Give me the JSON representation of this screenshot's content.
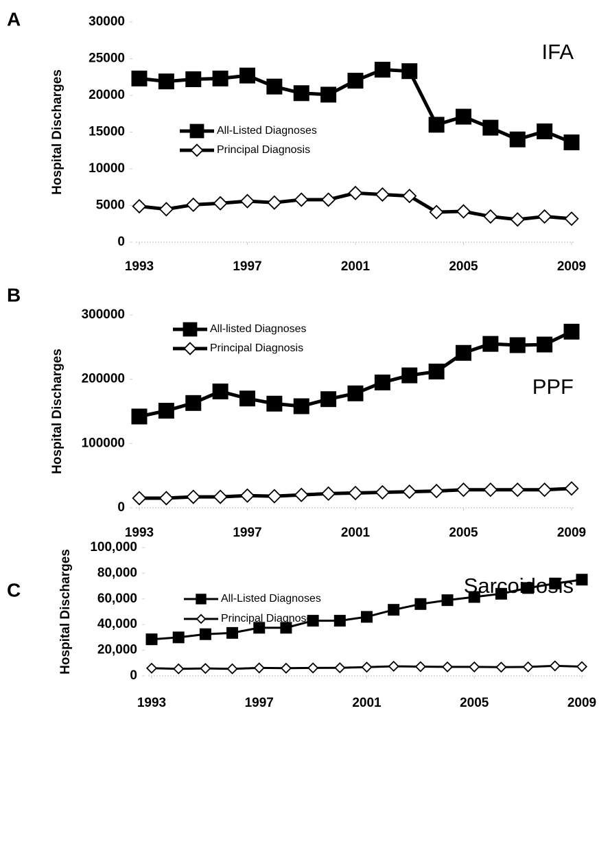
{
  "chart_data": [
    {
      "type": "line",
      "panel": "A",
      "annotation": "IFA",
      "ylabel": "Hospital Discharges",
      "x": [
        1993,
        1994,
        1995,
        1996,
        1997,
        1998,
        1999,
        2000,
        2001,
        2002,
        2003,
        2004,
        2005,
        2006,
        2007,
        2008,
        2009
      ],
      "xlim": [
        1993,
        2009
      ],
      "xticks": [
        1993,
        1997,
        2001,
        2005,
        2009
      ],
      "ylim": [
        0,
        30000
      ],
      "yticks": [
        0,
        5000,
        10000,
        15000,
        20000,
        25000,
        30000
      ],
      "series": [
        {
          "name": "All-Listed Diagnoses",
          "color": "#000000",
          "marker": "square",
          "values": [
            22300,
            21900,
            22200,
            22300,
            22700,
            21200,
            20300,
            20100,
            22000,
            23500,
            23300,
            16000,
            17100,
            15600,
            14000,
            15100,
            13600
          ]
        },
        {
          "name": "Principal Diagnosis",
          "color": "#000000",
          "marker": "diamond",
          "values": [
            4900,
            4500,
            5100,
            5300,
            5600,
            5400,
            5800,
            5800,
            6700,
            6500,
            6300,
            4100,
            4200,
            3500,
            3100,
            3500,
            3200
          ]
        }
      ]
    },
    {
      "type": "line",
      "panel": "B",
      "annotation": "PPF",
      "ylabel": "Hospital Discharges",
      "x": [
        1993,
        1994,
        1995,
        1996,
        1997,
        1998,
        1999,
        2000,
        2001,
        2002,
        2003,
        2004,
        2005,
        2006,
        2007,
        2008,
        2009
      ],
      "xlim": [
        1993,
        2009
      ],
      "xticks": [
        1993,
        1997,
        2001,
        2005,
        2009
      ],
      "ylim": [
        0,
        300000
      ],
      "yticks": [
        0,
        100000,
        200000,
        300000
      ],
      "series": [
        {
          "name": "All-listed Diagnoses",
          "color": "#000000",
          "marker": "square",
          "values": [
            142000,
            151000,
            163000,
            181000,
            170000,
            162000,
            158000,
            169000,
            178000,
            195000,
            206000,
            212000,
            241000,
            255000,
            253000,
            254000,
            274000
          ]
        },
        {
          "name": "Principal Diagnosis",
          "color": "#000000",
          "marker": "diamond",
          "values": [
            15000,
            15000,
            17000,
            17000,
            19000,
            18000,
            20000,
            22000,
            23000,
            24000,
            25000,
            26000,
            28000,
            28000,
            28000,
            28000,
            30000
          ]
        }
      ]
    },
    {
      "type": "line",
      "panel": "C",
      "annotation": "Sarcoidosis",
      "ylabel": "Hospital Discharges",
      "x": [
        1993,
        1994,
        1995,
        1996,
        1997,
        1998,
        1999,
        2000,
        2001,
        2002,
        2003,
        2004,
        2005,
        2006,
        2007,
        2008,
        2009
      ],
      "xlim": [
        1993,
        2009
      ],
      "xticks": [
        1993,
        1997,
        2001,
        2005,
        2009
      ],
      "ylim": [
        0,
        100000
      ],
      "yticks": [
        0,
        {
          "value": 20000,
          "label": "20,000"
        },
        {
          "value": 40000,
          "label": "40,000"
        },
        {
          "value": 60000,
          "label": "60,000"
        },
        {
          "value": 80000,
          "label": "80,000"
        },
        {
          "value": 100000,
          "label": "100,000"
        }
      ],
      "series": [
        {
          "name": "All-Listed Diagnoses",
          "color": "#000000",
          "marker": "square",
          "values": [
            28500,
            30000,
            32500,
            33500,
            37500,
            37500,
            43000,
            43000,
            46000,
            51500,
            56000,
            59000,
            61500,
            64000,
            68500,
            72000,
            75000
          ]
        },
        {
          "name": "Principal Diagnoses",
          "color": "#000000",
          "marker": "diamond",
          "values": [
            6000,
            5500,
            5800,
            5500,
            6200,
            6000,
            6200,
            6300,
            6800,
            7500,
            7200,
            7000,
            7000,
            6800,
            7000,
            7800,
            7200
          ]
        }
      ]
    }
  ]
}
